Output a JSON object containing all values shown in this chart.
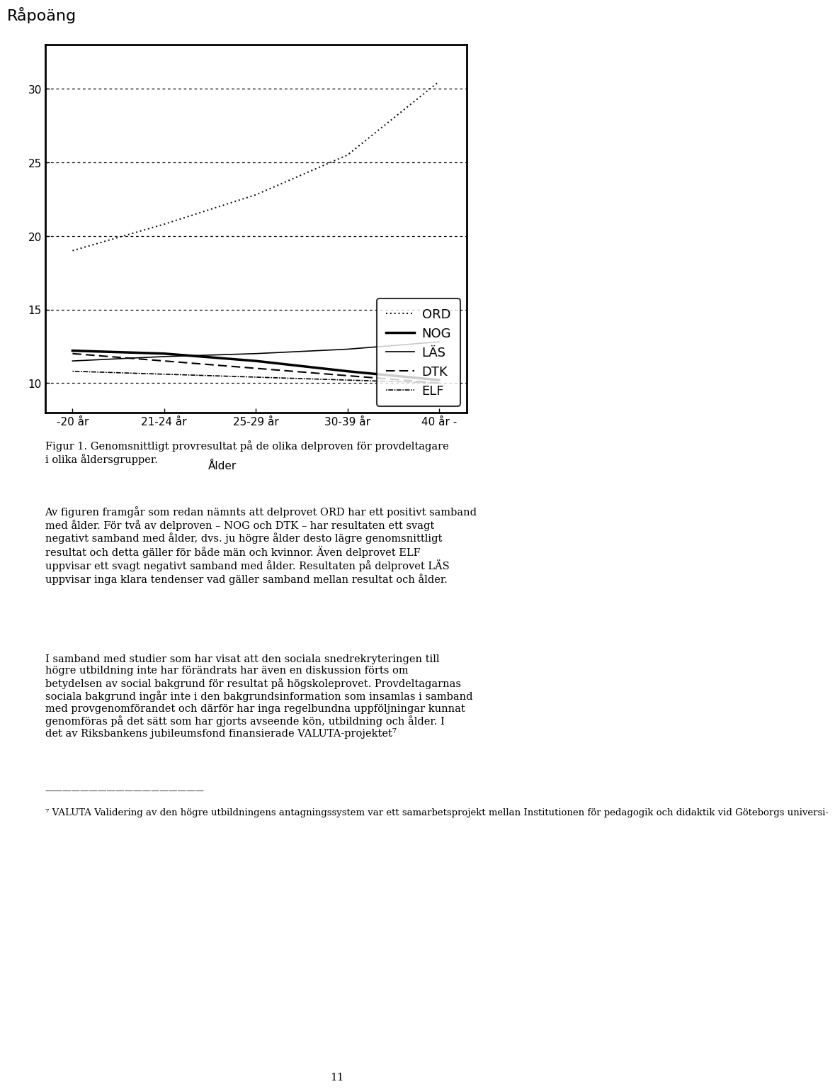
{
  "ylabel": "Råpoäng",
  "xlabel": "Ålder",
  "x_labels": [
    "-20 år",
    "21-24 år",
    "25-29 år",
    "30-39 år",
    "40 år -"
  ],
  "ylim": [
    8,
    33
  ],
  "yticks": [
    10,
    15,
    20,
    25,
    30
  ],
  "series_order": [
    "ORD",
    "NOG",
    "LÄS",
    "DTK",
    "ELF"
  ],
  "series": {
    "ORD": {
      "values": [
        19.0,
        20.8,
        22.8,
        25.5,
        30.5
      ],
      "linestyle_spec": [
        0,
        [
          1,
          2
        ]
      ],
      "linewidth": 1.4
    },
    "NOG": {
      "values": [
        12.2,
        12.0,
        11.5,
        10.8,
        10.2
      ],
      "linestyle_spec": "solid",
      "linewidth": 2.5
    },
    "LÄS": {
      "values": [
        11.5,
        11.8,
        12.0,
        12.3,
        12.8
      ],
      "linestyle_spec": "solid",
      "linewidth": 1.2
    },
    "DTK": {
      "values": [
        12.0,
        11.5,
        11.0,
        10.5,
        10.0
      ],
      "linestyle_spec": [
        0,
        [
          6,
          3
        ]
      ],
      "linewidth": 1.5
    },
    "ELF": {
      "values": [
        10.8,
        10.6,
        10.4,
        10.2,
        10.0
      ],
      "linestyle_spec": [
        0,
        [
          1,
          1,
          4,
          1
        ]
      ],
      "linewidth": 1.2
    }
  },
  "legend_styles": {
    "ORD": {
      "ls": [
        0,
        [
          1,
          2
        ]
      ],
      "lw": 1.4
    },
    "NOG": {
      "ls": "solid",
      "lw": 2.5
    },
    "LÄS": {
      "ls": "solid",
      "lw": 1.2
    },
    "DTK": {
      "ls": [
        0,
        [
          6,
          3
        ]
      ],
      "lw": 1.5
    },
    "ELF": {
      "ls": [
        0,
        [
          1,
          1,
          4,
          1
        ]
      ],
      "lw": 1.2
    }
  },
  "grid_linestyle": [
    0,
    [
      3,
      3
    ]
  ],
  "background_color": "#ffffff",
  "title_fontsize": 16,
  "tick_fontsize": 11,
  "legend_fontsize": 13,
  "figur_caption": "Figur 1. Genomsnittligt provresultat på de olika delproven för provdeltagare\ni olika åldersgrupper.",
  "body_text_1": "Av figuren framgår som redan nämnts att delprovet ORD har ett positivt samband med ålder. För två av delproven – NOG och DTK – har resultaten ett svagt negativt samband med ålder, dvs. ju högre ålder desto lägre genomsnittligt resultat och detta gäller för både män och kvinnor. Även delprovet ELF uppvisar ett svagt negativt samband med ålder. Resultaten på delprovet LÄS uppvisar inga klara tendenser vad gäller samband mellan resultat och ålder.",
  "body_text_2": "I samband med studier som har visat att den sociala snedrekryteringen till högre utbildning inte har förändrats har även en diskussion förts om betydelsen av social bakgrund för resultat på högskoleprovet. Provdeltagarnas sociala bakgrund ingår inte i den bakgrundsinformation som insamlas i samband med provgenomförandet och därför har inga regelbundna uppföljningar kunnat genomföras på det sätt som har gjorts avseende kön, utbildning och ålder. I det av Riksbankens jubileumsfond finansierade VALUTA-projektet⁷",
  "footnote_text": "⁷ VALUTA Validering av den högre utbildningens antagningssystem var ett samarbetsprojekt mellan Institutionen för pedagogik och didaktik vid Göteborgs universi-",
  "page_number": "11",
  "figure_width": 9.6,
  "figure_height": 15.48
}
